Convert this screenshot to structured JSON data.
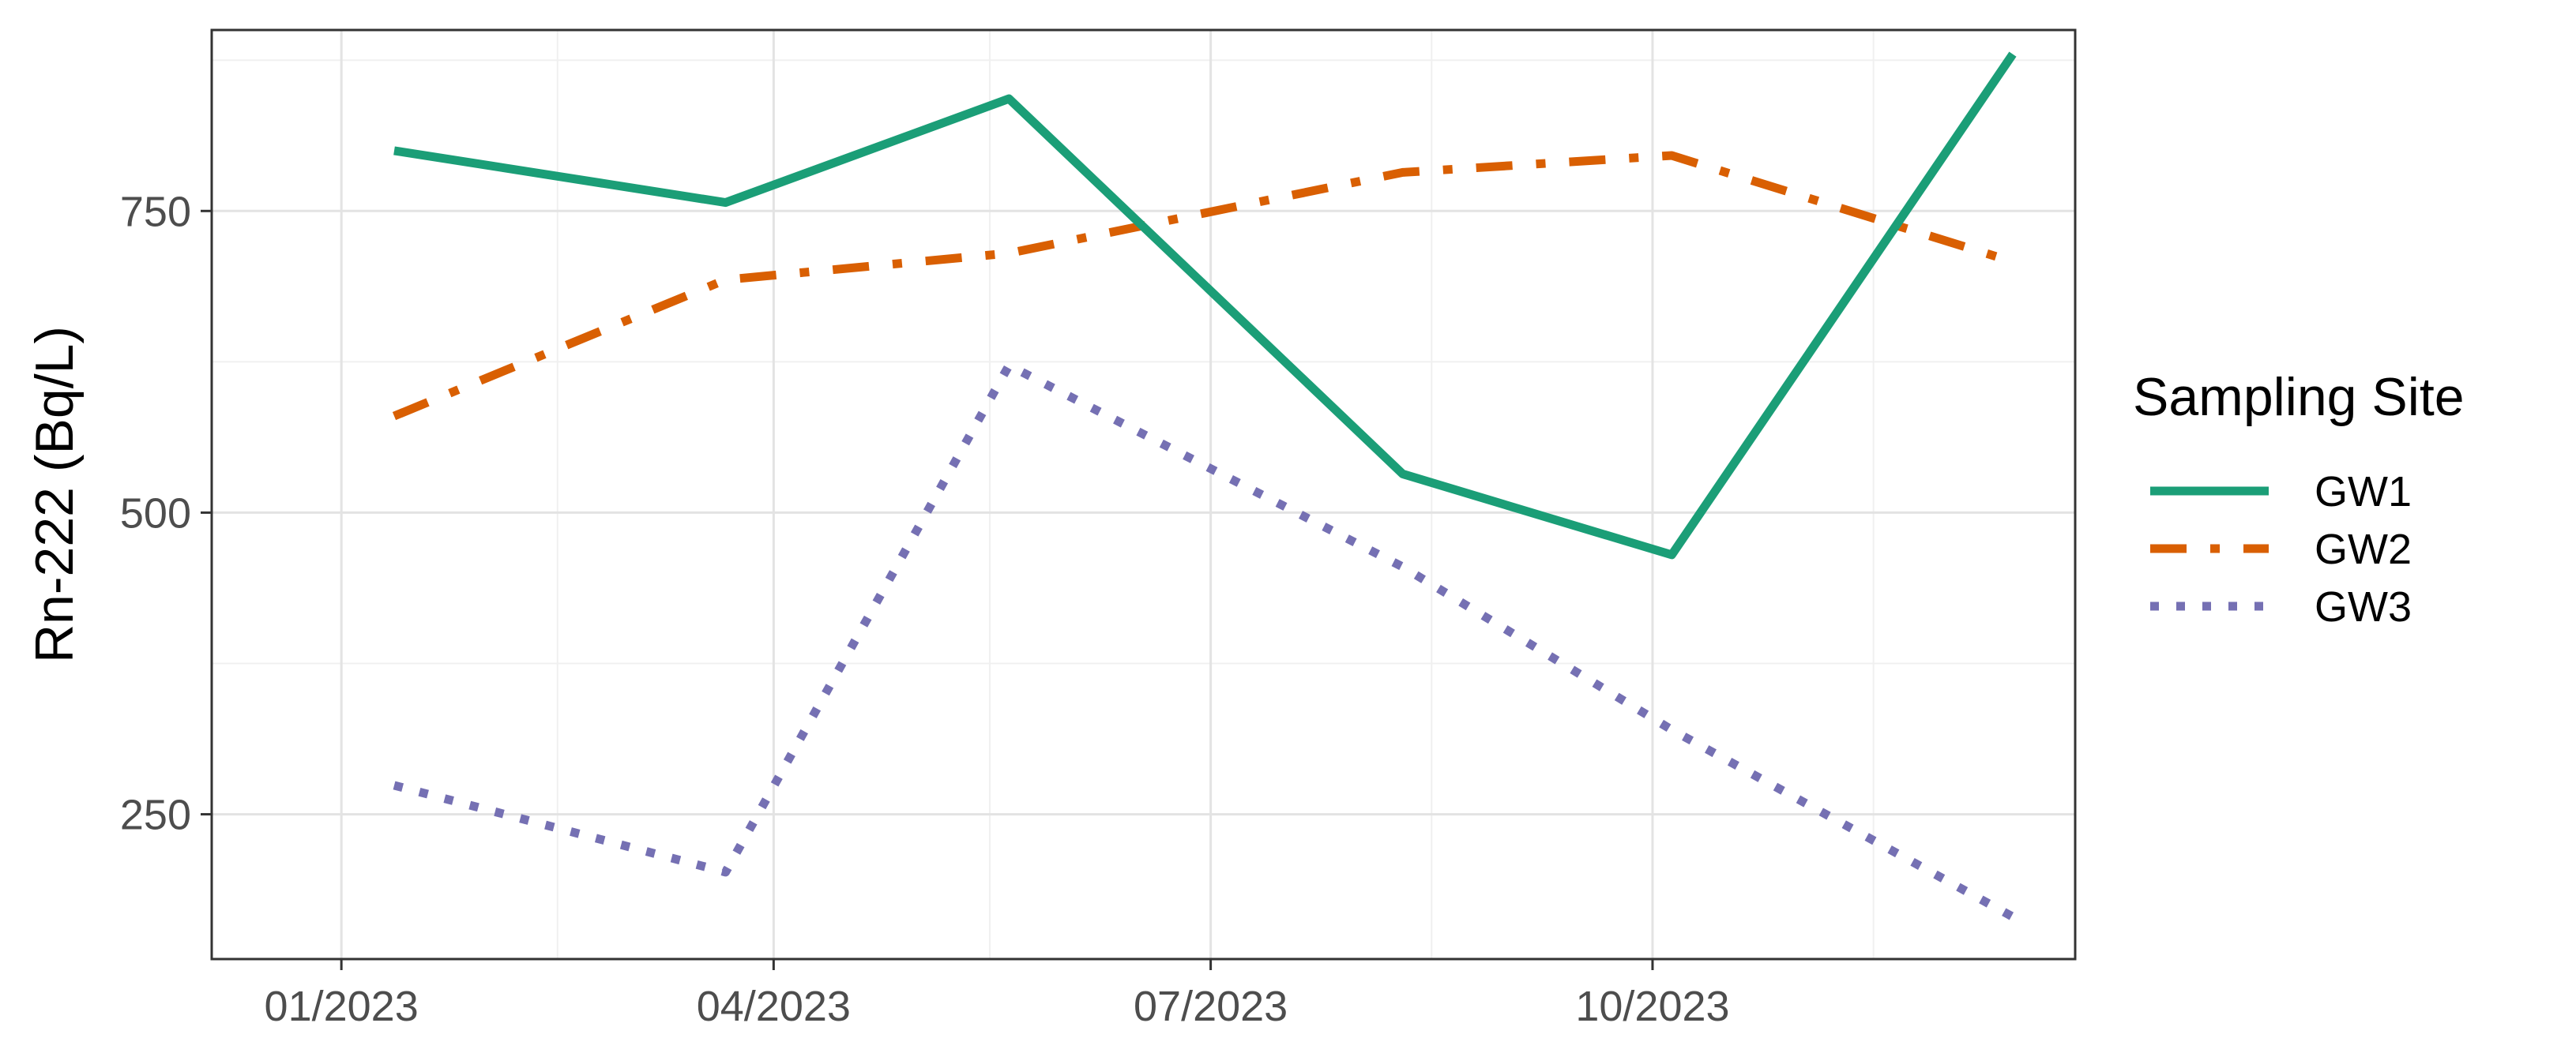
{
  "chart_data": {
    "type": "line",
    "title": "",
    "xlabel": "",
    "ylabel": "Rn-222 (Bq/L)",
    "x_ticks": [
      "01/2023",
      "04/2023",
      "07/2023",
      "10/2023"
    ],
    "y_ticks": [
      250,
      500,
      750
    ],
    "x_range": [
      "2022-12-05",
      "2023-12-28"
    ],
    "ylim": [
      130,
      900
    ],
    "grid": true,
    "legend": {
      "title": "Sampling Site",
      "position": "right"
    },
    "series": [
      {
        "name": "GW1",
        "color": "#1b9e77",
        "line_style": "solid",
        "points": [
          {
            "x": "2023-01-12",
            "y": 800
          },
          {
            "x": "2023-03-22",
            "y": 757
          },
          {
            "x": "2023-05-20",
            "y": 843
          },
          {
            "x": "2023-08-10",
            "y": 532
          },
          {
            "x": "2023-10-05",
            "y": 465
          },
          {
            "x": "2023-12-15",
            "y": 880
          }
        ]
      },
      {
        "name": "GW2",
        "color": "#d95f02",
        "line_style": "dashdot",
        "points": [
          {
            "x": "2023-01-12",
            "y": 580
          },
          {
            "x": "2023-03-22",
            "y": 693
          },
          {
            "x": "2023-05-20",
            "y": 715
          },
          {
            "x": "2023-08-10",
            "y": 782
          },
          {
            "x": "2023-10-05",
            "y": 796
          },
          {
            "x": "2023-12-15",
            "y": 708
          }
        ]
      },
      {
        "name": "GW3",
        "color": "#7570b3",
        "line_style": "dotted",
        "points": [
          {
            "x": "2023-01-12",
            "y": 274
          },
          {
            "x": "2023-03-22",
            "y": 202
          },
          {
            "x": "2023-05-20",
            "y": 622
          },
          {
            "x": "2023-08-10",
            "y": 455
          },
          {
            "x": "2023-10-05",
            "y": 320
          },
          {
            "x": "2023-12-15",
            "y": 165
          }
        ]
      }
    ]
  }
}
